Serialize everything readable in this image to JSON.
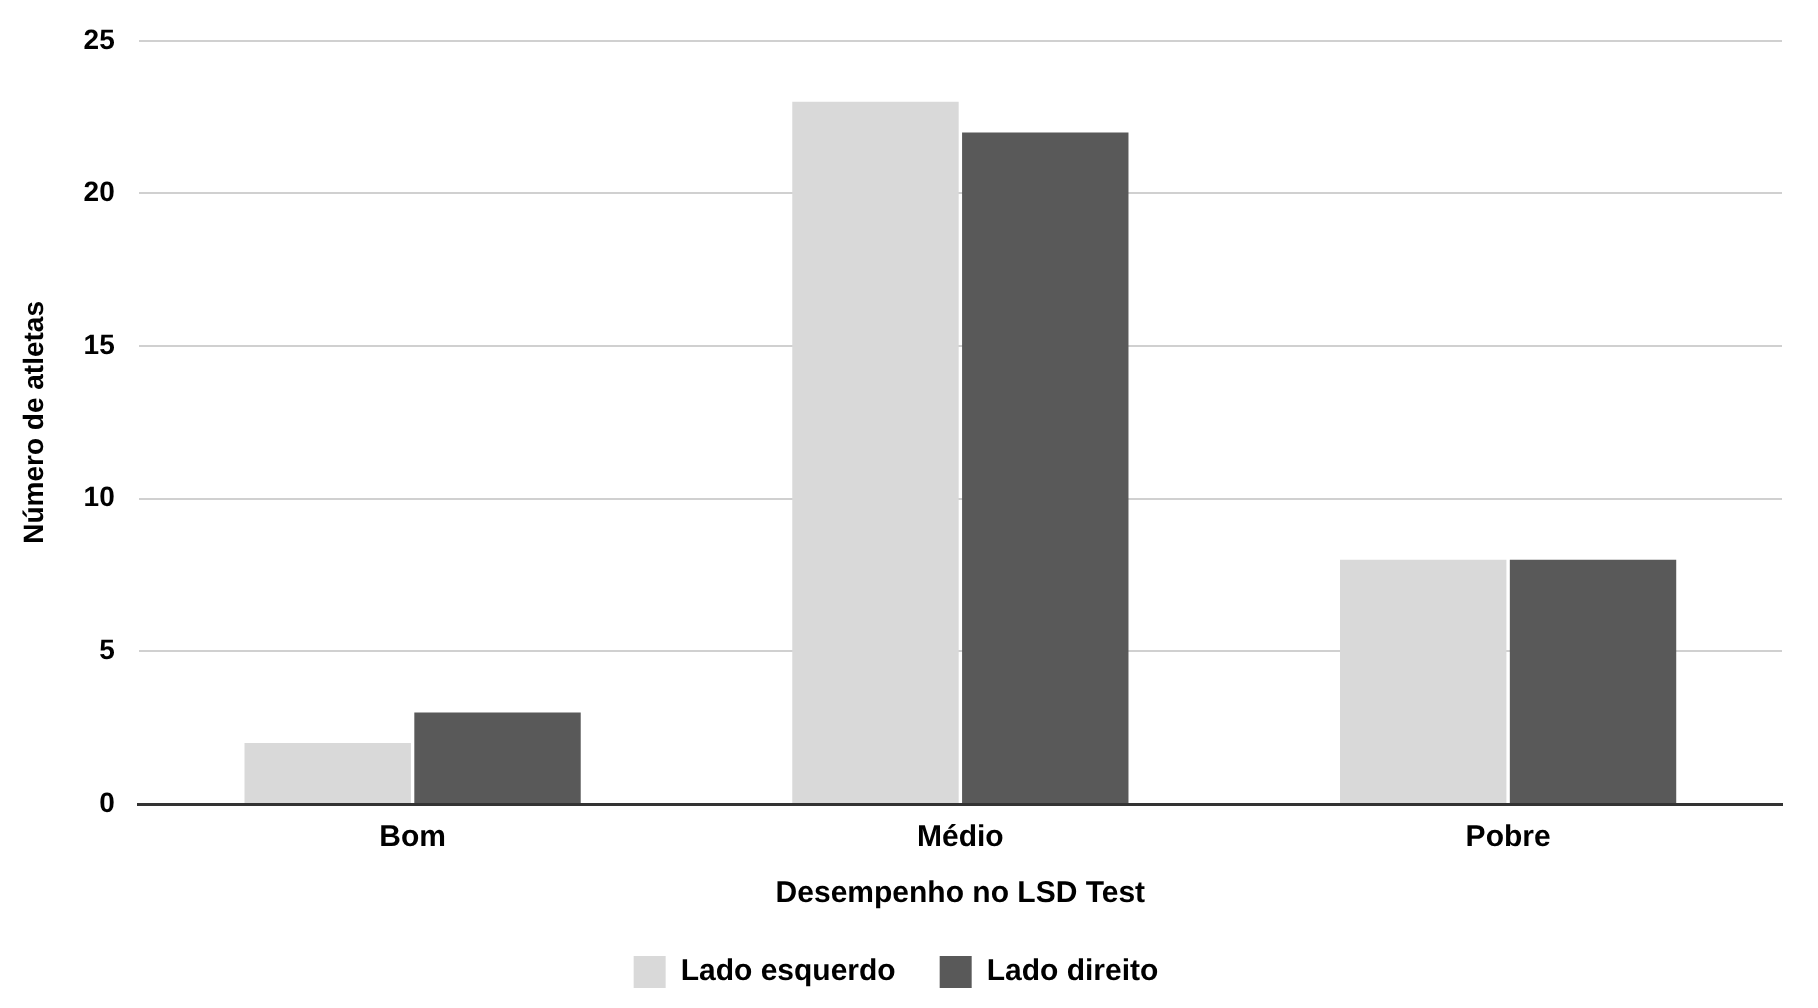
{
  "chart_data": {
    "type": "bar",
    "xlabel": "Desempenho no LSD Test",
    "ylabel": "Número de atletas",
    "categories": [
      "Bom",
      "Médio",
      "Pobre"
    ],
    "series": [
      {
        "name": "Lado esquerdo",
        "color": "#d9d9d9",
        "values": [
          2,
          23,
          8
        ]
      },
      {
        "name": "Lado direito",
        "color": "#595959",
        "values": [
          3,
          22,
          8
        ]
      }
    ],
    "ylim": [
      0,
      25
    ],
    "yticks": [
      0,
      5,
      10,
      15,
      20,
      25
    ],
    "grid": "y",
    "legend": "bottom"
  }
}
